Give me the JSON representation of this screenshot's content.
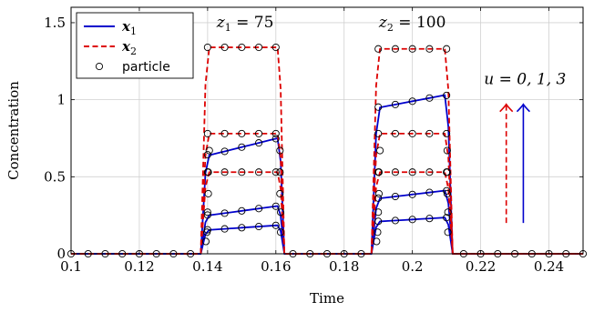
{
  "chart_data": {
    "type": "line",
    "title": "",
    "xlabel": "Time",
    "ylabel": "Concentration",
    "xlim": [
      0.1,
      0.25
    ],
    "ylim": [
      0,
      1.6
    ],
    "xticks": [
      "0.1",
      "0.12",
      "0.14",
      "0.16",
      "0.18",
      "0.2",
      "0.22",
      "0.24"
    ],
    "xtick_values": [
      0.1,
      0.12,
      0.14,
      0.16,
      0.18,
      0.2,
      0.22,
      0.24
    ],
    "yticks": [
      "0",
      "0.5",
      "1",
      "1.5"
    ],
    "ytick_values": [
      0,
      0.5,
      1,
      1.5
    ],
    "grid": true,
    "legend_position": "top-left",
    "legend": [
      {
        "label_base": "x",
        "label_sub": "1",
        "style": "solid",
        "color": "#0000cc"
      },
      {
        "label_base": "x",
        "label_sub": "2",
        "style": "dashed",
        "color": "#dd0000"
      },
      {
        "label": "particle",
        "style": "marker",
        "color": "#000000"
      }
    ],
    "annotations": {
      "z1": {
        "base": "z",
        "sub": "1",
        "rest": " = 75",
        "x": 0.151,
        "y": 1.5
      },
      "z2": {
        "base": "z",
        "sub": "2",
        "rest": " = 100",
        "x": 0.2,
        "y": 1.5
      },
      "u": {
        "text": "u = 0, 1, 3",
        "x": 0.233,
        "y": 1.13
      },
      "arrow_red": {
        "x": 0.2275,
        "y_from": 0.2,
        "y_to": 0.97,
        "color": "#dd0000"
      },
      "arrow_blue": {
        "x": 0.2325,
        "y_from": 0.2,
        "y_to": 0.97,
        "color": "#0000cc"
      }
    },
    "pulses": [
      {
        "t_start": 0.138,
        "rise_end": 0.1405,
        "fall_start": 0.1605,
        "t_end": 0.1625
      },
      {
        "t_start": 0.188,
        "rise_end": 0.1905,
        "fall_start": 0.2095,
        "t_end": 0.2118
      }
    ],
    "series": [
      {
        "variable": "x1",
        "u": 0,
        "color": "#0000cc",
        "style": "solid",
        "pulse_levels": [
          [
            0.155,
            0.185
          ],
          [
            0.21,
            0.235
          ]
        ]
      },
      {
        "variable": "x1",
        "u": 1,
        "color": "#0000cc",
        "style": "solid",
        "pulse_levels": [
          [
            0.25,
            0.31
          ],
          [
            0.36,
            0.41
          ]
        ]
      },
      {
        "variable": "x1",
        "u": 3,
        "color": "#0000cc",
        "style": "solid",
        "pulse_levels": [
          [
            0.64,
            0.75
          ],
          [
            0.95,
            1.03
          ]
        ]
      },
      {
        "variable": "x2",
        "u": 0,
        "color": "#dd0000",
        "style": "dashed",
        "pulse_levels": [
          [
            0.53,
            0.53
          ],
          [
            0.53,
            0.53
          ]
        ]
      },
      {
        "variable": "x2",
        "u": 1,
        "color": "#dd0000",
        "style": "dashed",
        "pulse_levels": [
          [
            0.78,
            0.78
          ],
          [
            0.78,
            0.78
          ]
        ]
      },
      {
        "variable": "x2",
        "u": 3,
        "color": "#dd0000",
        "style": "dashed",
        "pulse_levels": [
          [
            1.34,
            1.34
          ],
          [
            1.33,
            1.33
          ]
        ]
      }
    ],
    "particles": {
      "baseline_x": [
        0.1,
        0.105,
        0.11,
        0.115,
        0.12,
        0.125,
        0.13,
        0.135,
        0.14,
        0.145,
        0.15,
        0.155,
        0.16,
        0.165,
        0.17,
        0.175,
        0.18,
        0.185,
        0.19,
        0.195,
        0.2,
        0.205,
        0.21,
        0.215,
        0.22,
        0.225,
        0.23,
        0.235,
        0.24,
        0.245,
        0.25
      ],
      "pulse_x": [
        [
          0.14,
          0.145,
          0.15,
          0.155,
          0.16
        ],
        [
          0.19,
          0.195,
          0.2,
          0.205,
          0.21
        ]
      ],
      "rise_points": [
        {
          "x": 0.1395,
          "y": 0.08
        },
        {
          "x": 0.1398,
          "y": 0.14
        },
        {
          "x": 0.14,
          "y": 0.27
        },
        {
          "x": 0.1402,
          "y": 0.39
        },
        {
          "x": 0.1402,
          "y": 0.53
        },
        {
          "x": 0.1405,
          "y": 0.67
        },
        {
          "x": 0.1895,
          "y": 0.08
        },
        {
          "x": 0.1898,
          "y": 0.14
        },
        {
          "x": 0.19,
          "y": 0.27
        },
        {
          "x": 0.1902,
          "y": 0.39
        },
        {
          "x": 0.1902,
          "y": 0.53
        },
        {
          "x": 0.1905,
          "y": 0.67
        }
      ],
      "fall_points": [
        {
          "x": 0.1612,
          "y": 0.67
        },
        {
          "x": 0.1612,
          "y": 0.53
        },
        {
          "x": 0.1612,
          "y": 0.39
        },
        {
          "x": 0.1614,
          "y": 0.27
        },
        {
          "x": 0.1614,
          "y": 0.14
        },
        {
          "x": 0.2102,
          "y": 0.67
        },
        {
          "x": 0.2102,
          "y": 0.53
        },
        {
          "x": 0.2102,
          "y": 0.39
        },
        {
          "x": 0.2104,
          "y": 0.27
        },
        {
          "x": 0.2104,
          "y": 0.14
        }
      ]
    }
  }
}
